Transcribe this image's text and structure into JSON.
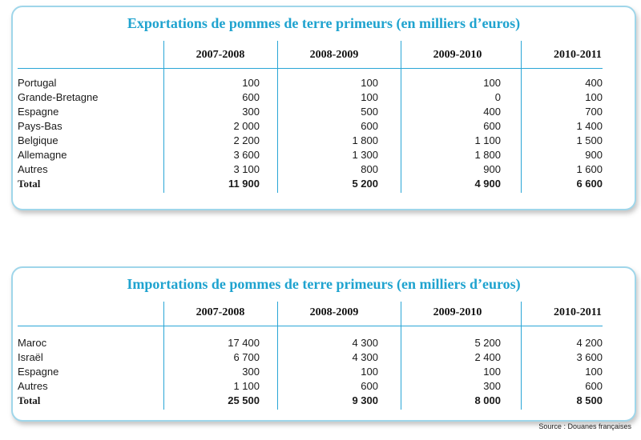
{
  "exports": {
    "title": "Exportations de pommes de terre primeurs (en milliers d’euros)",
    "columns": [
      "2007-2008",
      "2008-2009",
      "2009-2010",
      "2010-2011"
    ],
    "rows": [
      {
        "label": "Portugal",
        "values": [
          "100",
          "100",
          "100",
          "400"
        ]
      },
      {
        "label": "Grande-Bretagne",
        "values": [
          "600",
          "100",
          "0",
          "100"
        ]
      },
      {
        "label": "Espagne",
        "values": [
          "300",
          "500",
          "400",
          "700"
        ]
      },
      {
        "label": "Pays-Bas",
        "values": [
          "2 000",
          "600",
          "600",
          "1 400"
        ]
      },
      {
        "label": "Belgique",
        "values": [
          "2 200",
          "1 800",
          "1 100",
          "1 500"
        ]
      },
      {
        "label": "Allemagne",
        "values": [
          "3 600",
          "1 300",
          "1 800",
          "900"
        ]
      },
      {
        "label": "Autres",
        "values": [
          "3 100",
          "800",
          "900",
          "1 600"
        ]
      }
    ],
    "total": {
      "label": "Total",
      "values": [
        "11 900",
        "5 200",
        "4 900",
        "6 600"
      ]
    }
  },
  "imports": {
    "title": "Importations de pommes de terre primeurs (en milliers d’euros)",
    "columns": [
      "2007-2008",
      "2008-2009",
      "2009-2010",
      "2010-2011"
    ],
    "rows": [
      {
        "label": "Maroc",
        "values": [
          "17 400",
          "4 300",
          "5 200",
          "4 200"
        ]
      },
      {
        "label": "Israël",
        "values": [
          "6 700",
          "4 300",
          "2 400",
          "3 600"
        ]
      },
      {
        "label": "Espagne",
        "values": [
          "300",
          "100",
          "100",
          "100"
        ]
      },
      {
        "label": "Autres",
        "values": [
          "1 100",
          "600",
          "300",
          "600"
        ]
      }
    ],
    "total": {
      "label": "Total",
      "values": [
        "25 500",
        "9 300",
        "8 000",
        "8 500"
      ]
    }
  },
  "source": "Source : Douanes françaises"
}
